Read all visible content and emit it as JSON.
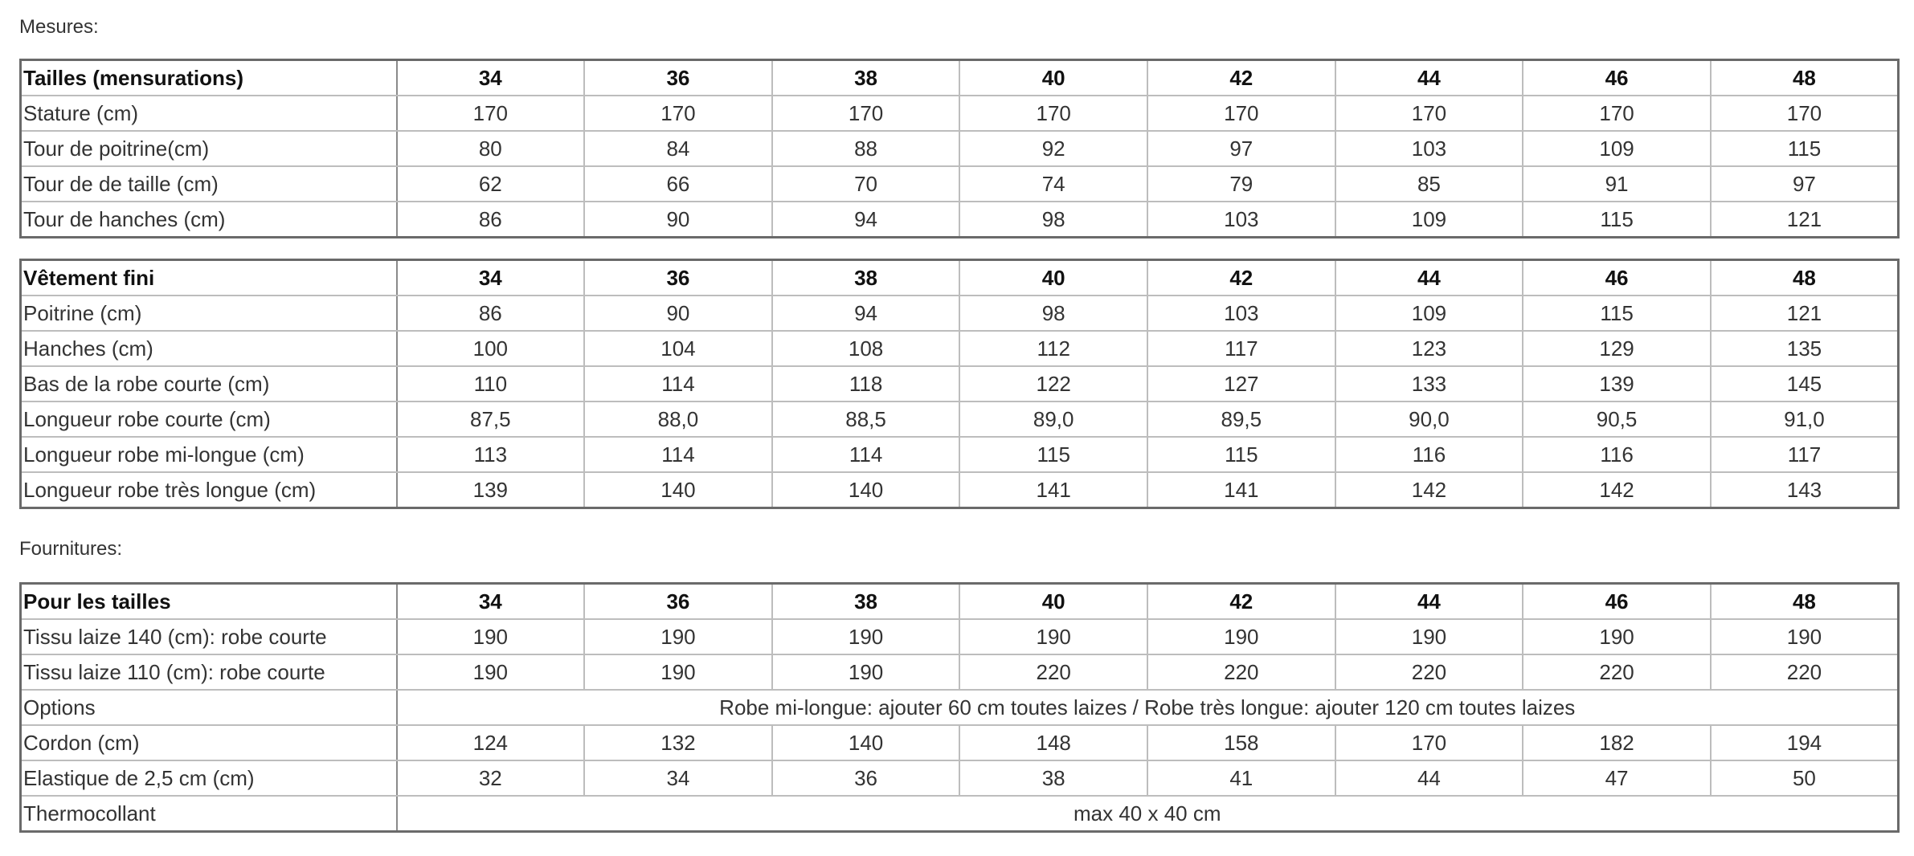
{
  "mesures_label": "Mesures:",
  "fournitures_label": "Fournitures:",
  "tables": [
    {
      "header": [
        "Tailles (mensurations)",
        "34",
        "36",
        "38",
        "40",
        "42",
        "44",
        "46",
        "48"
      ],
      "rows": [
        [
          "Stature (cm)",
          "170",
          "170",
          "170",
          "170",
          "170",
          "170",
          "170",
          "170"
        ],
        [
          "Tour de poitrine(cm)",
          "80",
          "84",
          "88",
          "92",
          "97",
          "103",
          "109",
          "115"
        ],
        [
          "Tour de de taille (cm)",
          "62",
          "66",
          "70",
          "74",
          "79",
          "85",
          "91",
          "97"
        ],
        [
          "Tour de hanches (cm)",
          "86",
          "90",
          "94",
          "98",
          "103",
          "109",
          "115",
          "121"
        ]
      ]
    },
    {
      "header": [
        "Vêtement fini",
        "34",
        "36",
        "38",
        "40",
        "42",
        "44",
        "46",
        "48"
      ],
      "rows": [
        [
          "Poitrine (cm)",
          "86",
          "90",
          "94",
          "98",
          "103",
          "109",
          "115",
          "121"
        ],
        [
          "Hanches (cm)",
          "100",
          "104",
          "108",
          "112",
          "117",
          "123",
          "129",
          "135"
        ],
        [
          "Bas de la robe courte (cm)",
          "110",
          "114",
          "118",
          "122",
          "127",
          "133",
          "139",
          "145"
        ],
        [
          "Longueur robe courte (cm)",
          "87,5",
          "88,0",
          "88,5",
          "89,0",
          "89,5",
          "90,0",
          "90,5",
          "91,0"
        ],
        [
          "Longueur robe mi-longue (cm)",
          "113",
          "114",
          "114",
          "115",
          "115",
          "116",
          "116",
          "117"
        ],
        [
          "Longueur robe très longue (cm)",
          "139",
          "140",
          "140",
          "141",
          "141",
          "142",
          "142",
          "143"
        ]
      ]
    },
    {
      "header": [
        "Pour les tailles",
        "34",
        "36",
        "38",
        "40",
        "42",
        "44",
        "46",
        "48"
      ],
      "rows": [
        [
          "Tissu laize 140 (cm): robe courte",
          "190",
          "190",
          "190",
          "190",
          "190",
          "190",
          "190",
          "190"
        ],
        [
          "Tissu laize 110 (cm): robe courte",
          "190",
          "190",
          "190",
          "220",
          "220",
          "220",
          "220",
          "220"
        ],
        [
          "Options",
          "Robe mi-longue: ajouter 60 cm toutes laizes / Robe très longue: ajouter 120 cm toutes laizes"
        ],
        [
          "Cordon (cm)",
          "124",
          "132",
          "140",
          "148",
          "158",
          "170",
          "182",
          "194"
        ],
        [
          "Elastique de 2,5 cm (cm)",
          "32",
          "34",
          "36",
          "38",
          "41",
          "44",
          "47",
          "50"
        ],
        [
          "Thermocollant",
          "max 40 x 40 cm"
        ]
      ]
    }
  ]
}
